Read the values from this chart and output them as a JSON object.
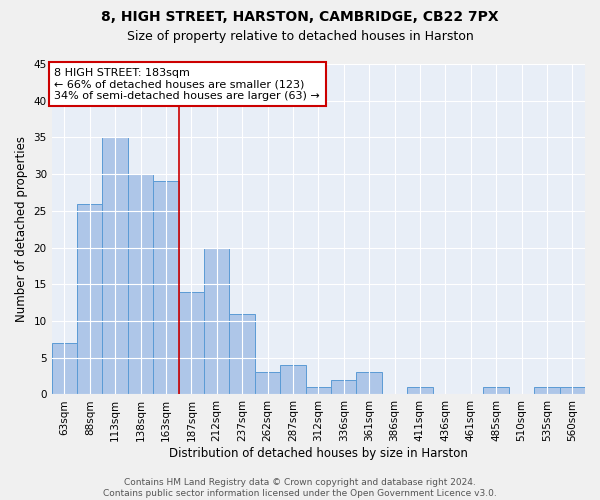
{
  "title": "8, HIGH STREET, HARSTON, CAMBRIDGE, CB22 7PX",
  "subtitle": "Size of property relative to detached houses in Harston",
  "xlabel": "Distribution of detached houses by size in Harston",
  "ylabel": "Number of detached properties",
  "categories": [
    "63sqm",
    "88sqm",
    "113sqm",
    "138sqm",
    "163sqm",
    "187sqm",
    "212sqm",
    "237sqm",
    "262sqm",
    "287sqm",
    "312sqm",
    "336sqm",
    "361sqm",
    "386sqm",
    "411sqm",
    "436sqm",
    "461sqm",
    "485sqm",
    "510sqm",
    "535sqm",
    "560sqm"
  ],
  "values": [
    7,
    26,
    35,
    30,
    29,
    14,
    20,
    11,
    3,
    4,
    1,
    2,
    3,
    0,
    1,
    0,
    0,
    1,
    0,
    1,
    1
  ],
  "bar_color": "#aec6e8",
  "bar_edge_color": "#5b9bd5",
  "background_color": "#e8eef7",
  "grid_color": "#ffffff",
  "fig_background": "#f0f0f0",
  "vline_color": "#cc0000",
  "vline_x_index": 4.5,
  "annotation_line1": "8 HIGH STREET: 183sqm",
  "annotation_line2": "← 66% of detached houses are smaller (123)",
  "annotation_line3": "34% of semi-detached houses are larger (63) →",
  "annotation_box_color": "#cc0000",
  "ylim": [
    0,
    45
  ],
  "yticks": [
    0,
    5,
    10,
    15,
    20,
    25,
    30,
    35,
    40,
    45
  ],
  "footer": "Contains HM Land Registry data © Crown copyright and database right 2024.\nContains public sector information licensed under the Open Government Licence v3.0.",
  "title_fontsize": 10,
  "subtitle_fontsize": 9,
  "xlabel_fontsize": 8.5,
  "ylabel_fontsize": 8.5,
  "tick_fontsize": 7.5,
  "annotation_fontsize": 8,
  "footer_fontsize": 6.5
}
